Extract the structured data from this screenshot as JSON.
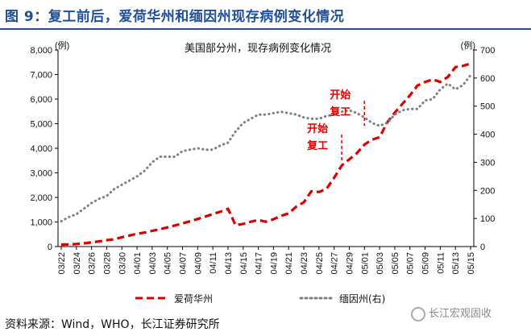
{
  "figure_title": "图 9：复工前后，爱荷华州和缅因州现存病例变化情况",
  "source": "资料来源：Wind，WHO，长江证券研究所",
  "watermark": "长江宏观固收",
  "colors": {
    "title": "#1f4e9a",
    "iowa": "#d90000",
    "maine": "#808080",
    "annotation": "#e00000"
  },
  "chart_data": {
    "type": "line",
    "title": "美国部分州，现存病例变化情况",
    "y_left_unit": "(例)",
    "y_right_unit": "(例)",
    "ylim_left": [
      0,
      8000
    ],
    "ylim_right": [
      0,
      700
    ],
    "yticks_left": [
      "0",
      "1,000",
      "2,000",
      "3,000",
      "4,000",
      "5,000",
      "6,000",
      "7,000",
      "8,000"
    ],
    "yticks_right": [
      "0",
      "100",
      "200",
      "300",
      "400",
      "500",
      "600",
      "700"
    ],
    "x_tick_labels": [
      "03/22",
      "03/24",
      "03/26",
      "03/28",
      "03/30",
      "04/01",
      "04/03",
      "04/05",
      "04/07",
      "04/09",
      "04/11",
      "04/13",
      "04/15",
      "04/17",
      "04/19",
      "04/21",
      "04/23",
      "04/25",
      "04/27",
      "04/29",
      "05/01",
      "05/03",
      "05/05",
      "05/07",
      "05/09",
      "05/11",
      "05/13",
      "05/15"
    ],
    "dates": [
      "03/22",
      "03/23",
      "03/24",
      "03/25",
      "03/26",
      "03/27",
      "03/28",
      "03/29",
      "03/30",
      "03/31",
      "04/01",
      "04/02",
      "04/03",
      "04/04",
      "04/05",
      "04/06",
      "04/07",
      "04/08",
      "04/09",
      "04/10",
      "04/11",
      "04/12",
      "04/13",
      "04/14",
      "04/15",
      "04/16",
      "04/17",
      "04/18",
      "04/19",
      "04/20",
      "04/21",
      "04/22",
      "04/23",
      "04/24",
      "04/25",
      "04/26",
      "04/27",
      "04/28",
      "04/29",
      "04/30",
      "05/01",
      "05/02",
      "05/03",
      "05/04",
      "05/05",
      "05/06",
      "05/07",
      "05/08",
      "05/09",
      "05/10",
      "05/11",
      "05/12",
      "05/13",
      "05/14",
      "05/15"
    ],
    "series": [
      {
        "name": "爱荷华州",
        "axis": "left",
        "style": "dashed",
        "values": [
          80,
          90,
          100,
          130,
          170,
          210,
          260,
          300,
          380,
          450,
          520,
          570,
          640,
          700,
          780,
          860,
          940,
          1030,
          1120,
          1220,
          1320,
          1420,
          1530,
          870,
          920,
          1010,
          1080,
          1010,
          1110,
          1250,
          1350,
          1620,
          1800,
          2250,
          2220,
          2350,
          2800,
          3300,
          3550,
          3800,
          4150,
          4350,
          4450,
          5050,
          5450,
          5800,
          6150,
          6550,
          6700,
          6800,
          6700,
          6900,
          7300,
          7350,
          7450
        ]
      },
      {
        "name": "缅因州(右)",
        "axis": "right",
        "style": "dotted",
        "values": [
          90,
          105,
          115,
          135,
          155,
          170,
          180,
          205,
          220,
          235,
          250,
          270,
          300,
          320,
          320,
          320,
          340,
          345,
          350,
          345,
          345,
          360,
          370,
          410,
          440,
          455,
          470,
          470,
          475,
          480,
          475,
          470,
          460,
          455,
          455,
          465,
          470,
          480,
          485,
          475,
          460,
          440,
          430,
          440,
          470,
          485,
          490,
          490,
          520,
          525,
          560,
          580,
          560,
          575,
          610
        ]
      }
    ],
    "annotations": [
      {
        "lines": [
          "开始",
          "复工"
        ],
        "date": "04/28"
      },
      {
        "lines": [
          "开始",
          "复工"
        ],
        "date": "05/01"
      }
    ],
    "legend": "bottom",
    "grid": false
  }
}
